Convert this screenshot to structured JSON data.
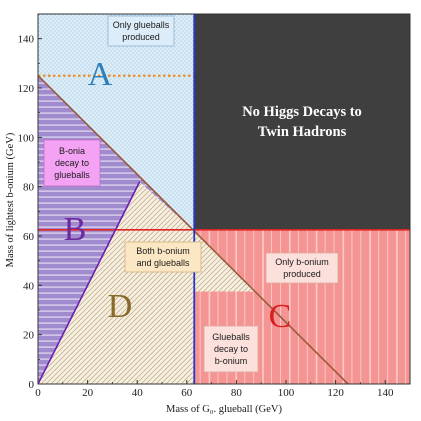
{
  "chart_data": {
    "type": "area",
    "xlabel": "Mass of G₀. glueball (GeV)",
    "ylabel": "Mass of lightest b-onium (GeV)",
    "xlim": [
      0,
      150
    ],
    "ylim": [
      0,
      150
    ],
    "xticks": [
      0,
      20,
      40,
      60,
      80,
      100,
      120,
      140
    ],
    "yticks": [
      0,
      20,
      40,
      60,
      80,
      100,
      120,
      140
    ],
    "regions": [
      {
        "letter": "A",
        "polygon": [
          [
            0,
            150
          ],
          [
            63,
            150
          ],
          [
            63,
            125
          ],
          [
            0,
            125
          ]
        ]
      },
      {
        "letter": "B",
        "polygon": [
          [
            0,
            0
          ],
          [
            0,
            125
          ],
          [
            63,
            62.5
          ]
        ]
      },
      {
        "letter": "C",
        "polygon": [
          [
            0,
            0
          ],
          [
            150,
            0
          ],
          [
            150,
            62.5
          ],
          [
            63,
            62.5
          ]
        ]
      },
      {
        "letter": "D",
        "polygon": [
          [
            0,
            0
          ],
          [
            63,
            62.5
          ],
          [
            63,
            0
          ]
        ]
      },
      {
        "letter": "",
        "polygon": [
          [
            63,
            150
          ],
          [
            150,
            150
          ],
          [
            150,
            62.5
          ],
          [
            63,
            62.5
          ]
        ]
      }
    ],
    "lines": {
      "brown_diagonal": [
        [
          0,
          125
        ],
        [
          125,
          0
        ]
      ],
      "purple_curve": [
        [
          0,
          0
        ],
        [
          41,
          82
        ]
      ],
      "blue_vertical_x": 63,
      "red_horizontal_y": 62.5,
      "orange_dotted_y": 125
    },
    "labels": {
      "region_a": "A",
      "region_b": "B",
      "region_c": "C",
      "region_d": "D",
      "only_glueballs": [
        "Only glueballs",
        "produced"
      ],
      "no_higgs": [
        "No Higgs Decays to",
        "Twin Hadrons"
      ],
      "bonia_decay": [
        "B-onia",
        "decay to",
        "glueballs"
      ],
      "both": [
        "Both b-onium",
        "and glueballs"
      ],
      "only_bonium": [
        "Only b-onium",
        "produced"
      ],
      "glueballs_decay": [
        "Glueballs",
        "decay to",
        "b-onium"
      ]
    },
    "colors": {
      "light_blue_dots": "#cfe6f5",
      "purple": "#9b87c9",
      "salmon": "#f08c8c",
      "dark_gray": "#3f3f3f",
      "cream_hatch": "#f3ead8",
      "brown_line": "#9a5a3a",
      "blue_line": "#2636c8",
      "red_line": "#e02424",
      "orange_dotted": "#f08a1e",
      "pink_box": "#f4a3f4",
      "light_yellow_box": "#fbe7c4",
      "pale_pink_box": "#fce0dc",
      "light_blue_box": "#dcecf8"
    }
  }
}
